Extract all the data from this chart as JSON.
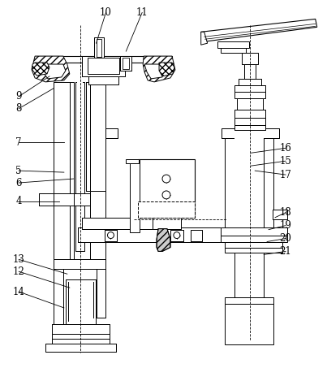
{
  "figsize": [
    4.03,
    4.53
  ],
  "dpi": 100,
  "background_color": "#ffffff",
  "annotations": [
    [
      "9",
      22,
      118,
      60,
      93
    ],
    [
      "8",
      22,
      133,
      65,
      108
    ],
    [
      "7",
      22,
      175,
      78,
      175
    ],
    [
      "5",
      22,
      210,
      78,
      212
    ],
    [
      "6",
      22,
      225,
      90,
      220
    ],
    [
      "4",
      22,
      248,
      72,
      248
    ],
    [
      "13",
      22,
      320,
      82,
      338
    ],
    [
      "12",
      22,
      335,
      85,
      355
    ],
    [
      "14",
      22,
      360,
      78,
      380
    ],
    [
      "10",
      130,
      14,
      118,
      52
    ],
    [
      "11",
      175,
      14,
      155,
      62
    ],
    [
      "16",
      353,
      182,
      310,
      188
    ],
    [
      "15",
      353,
      198,
      310,
      204
    ],
    [
      "17",
      353,
      215,
      315,
      210
    ],
    [
      "18",
      353,
      262,
      340,
      268
    ],
    [
      "19",
      353,
      278,
      332,
      283
    ],
    [
      "20",
      353,
      294,
      330,
      298
    ],
    [
      "21",
      353,
      310,
      326,
      314
    ]
  ]
}
